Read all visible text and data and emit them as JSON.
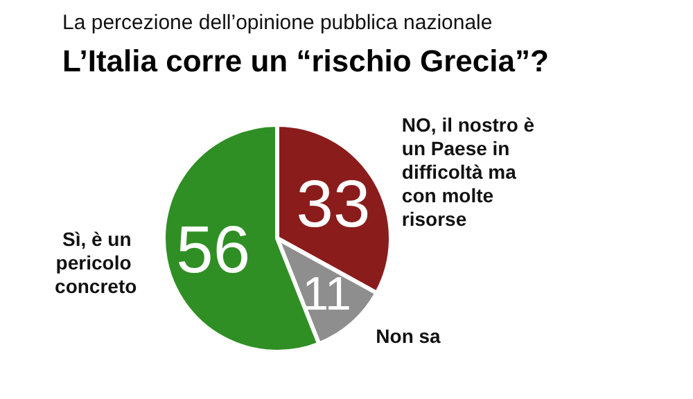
{
  "chart_data": {
    "type": "pie",
    "subtitle": "La percezione dell’opinione pubblica nazionale",
    "title": "L’Italia corre un “rischio Grecia”?",
    "categories": [
      "NO, il nostro è un Paese in difficoltà ma con molte risorse",
      "Non sa",
      "Sì, è un pericolo concreto"
    ],
    "values": [
      33,
      11,
      56
    ],
    "colors": [
      "#8b1c1c",
      "#8e8e8e",
      "#2f8f24"
    ],
    "data_labels": true,
    "legend": false
  }
}
